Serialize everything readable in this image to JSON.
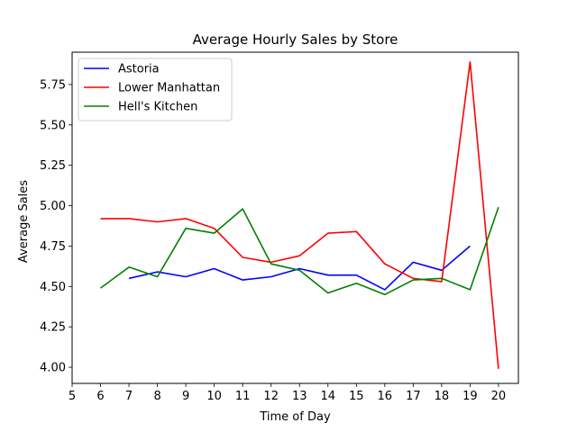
{
  "chart_data": {
    "type": "line",
    "title": "Average Hourly Sales by Store",
    "xlabel": "Time of Day",
    "ylabel": "Average Sales",
    "xlim": [
      5,
      20.7
    ],
    "ylim": [
      3.9,
      5.95
    ],
    "x_ticks": [
      "5",
      "6",
      "7",
      "8",
      "9",
      "10",
      "11",
      "12",
      "13",
      "14",
      "15",
      "16",
      "17",
      "18",
      "19",
      "20"
    ],
    "y_ticks": [
      "4.00",
      "4.25",
      "4.50",
      "4.75",
      "5.00",
      "5.25",
      "5.50",
      "5.75"
    ],
    "grid": false,
    "legend_position": "top-left",
    "series": [
      {
        "name": "Astoria",
        "color": "#0000ff",
        "x": [
          7,
          8,
          9,
          10,
          11,
          12,
          13,
          14,
          15,
          16,
          17,
          18,
          19
        ],
        "y": [
          4.55,
          4.59,
          4.56,
          4.61,
          4.54,
          4.56,
          4.61,
          4.57,
          4.57,
          4.48,
          4.65,
          4.6,
          4.75
        ]
      },
      {
        "name": "Lower Manhattan",
        "color": "#ff0000",
        "x": [
          6,
          7,
          8,
          9,
          10,
          11,
          12,
          13,
          14,
          15,
          16,
          17,
          18,
          19,
          20
        ],
        "y": [
          4.92,
          4.92,
          4.9,
          4.92,
          4.86,
          4.68,
          4.65,
          4.69,
          4.83,
          4.84,
          4.64,
          4.55,
          4.53,
          5.89,
          3.99
        ]
      },
      {
        "name": "Hell's Kitchen",
        "color": "#008000",
        "x": [
          6,
          7,
          8,
          9,
          10,
          11,
          12,
          13,
          14,
          15,
          16,
          17,
          18,
          19,
          20
        ],
        "y": [
          4.49,
          4.62,
          4.56,
          4.86,
          4.83,
          4.98,
          4.64,
          4.6,
          4.46,
          4.52,
          4.45,
          4.54,
          4.55,
          4.48,
          4.99
        ]
      }
    ]
  }
}
